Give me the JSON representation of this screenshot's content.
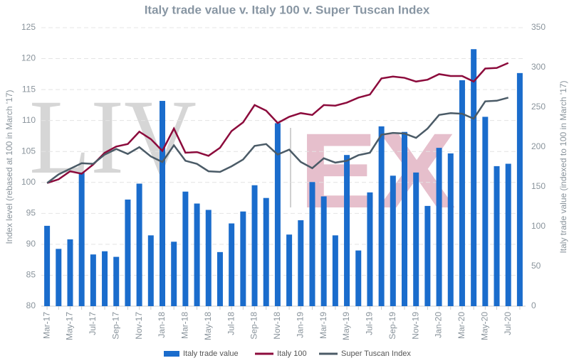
{
  "chart_data": {
    "type": "bar-line",
    "title": "Italy trade value v. Italy 100 v. Super Tuscan Index",
    "y_label": "Index level (rebased at 100 in March '17)",
    "y2_label": "Italy trade value (indexed to 100 in March '17)",
    "watermark": [
      "LIV",
      "EX"
    ],
    "categories": [
      "Mar-17",
      null,
      "May-17",
      null,
      "Jul-17",
      null,
      "Sep-17",
      null,
      "Nov-17",
      null,
      "Jan-18",
      null,
      "Mar-18",
      null,
      "May-18",
      null,
      "Jul-18",
      null,
      "Sep-18",
      null,
      "Nov-18",
      null,
      "Jan-19",
      null,
      "Mar-19",
      null,
      "May-19",
      null,
      "Jul-19",
      null,
      "Sep-19",
      null,
      "Nov-19",
      null,
      "Jan-20",
      null,
      "Mar-20",
      null,
      "May-20",
      null,
      "Jul-20",
      null
    ],
    "series": [
      {
        "name": "Italy trade value",
        "kind": "bar",
        "axis": "y2",
        "color": "#1a6ccc",
        "values": [
          101,
          72,
          84,
          168,
          65,
          69,
          62,
          134,
          154,
          89,
          258,
          81,
          144,
          129,
          121,
          68,
          104,
          119,
          152,
          136,
          230,
          90,
          108,
          156,
          138,
          89,
          190,
          70,
          143,
          226,
          164,
          219,
          168,
          126,
          199,
          192,
          284,
          323,
          238,
          176,
          179,
          293
        ]
      },
      {
        "name": "Italy 100",
        "kind": "line",
        "color": "#8c0b3c",
        "values": [
          99.9,
          100.5,
          101.8,
          101.4,
          102.9,
          104.8,
          105.8,
          106.2,
          108.2,
          107.0,
          105.1,
          108.7,
          104.8,
          104.9,
          104.3,
          105.6,
          108.3,
          109.7,
          112.5,
          111.6,
          109.6,
          110.6,
          111.2,
          110.9,
          112.5,
          112.4,
          112.9,
          113.7,
          114.2,
          116.8,
          117.1,
          116.9,
          116.3,
          116.6,
          117.5,
          117.2,
          117.2,
          116.3,
          118.4,
          118.5,
          119.3,
          null
        ]
      },
      {
        "name": "Super Tuscan Index",
        "kind": "line",
        "color": "#4b5b67",
        "values": [
          99.9,
          101.3,
          102.2,
          103.1,
          103.0,
          104.5,
          105.4,
          104.6,
          105.7,
          104.2,
          103.3,
          106.0,
          103.5,
          103.0,
          101.8,
          101.7,
          102.6,
          103.7,
          105.9,
          106.2,
          104.5,
          105.3,
          103.3,
          102.3,
          103.9,
          103.2,
          103.5,
          104.4,
          104.8,
          107.7,
          108.0,
          107.9,
          107.2,
          108.7,
          110.9,
          111.2,
          111.1,
          110.3,
          113.1,
          113.2,
          113.7,
          null
        ]
      }
    ],
    "ylim": [
      80,
      125
    ],
    "yticks": [
      80,
      85,
      90,
      95,
      100,
      105,
      110,
      115,
      120,
      125
    ],
    "y2lim": [
      0,
      350
    ],
    "y2ticks": [
      0,
      50,
      100,
      150,
      200,
      250,
      300,
      350
    ],
    "grid": true,
    "legend": "bottom"
  }
}
